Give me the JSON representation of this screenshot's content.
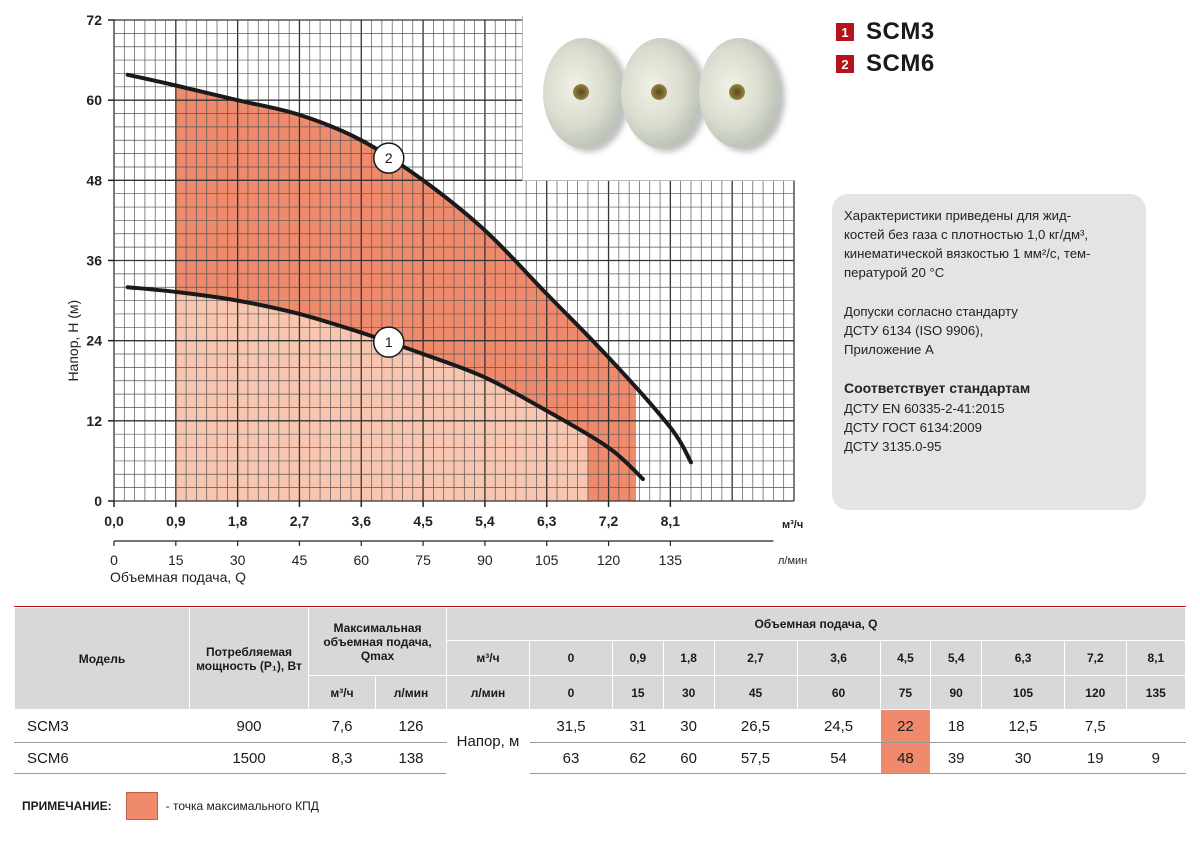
{
  "chart_data": {
    "type": "line",
    "title": "",
    "ylabel": "Напор, H (м)",
    "xlabel": "Объемная подача, Q",
    "ylim": [
      0,
      72
    ],
    "xlim": [
      0,
      9.9
    ],
    "y_ticks": [
      "0",
      "12",
      "24",
      "36",
      "48",
      "60",
      "72"
    ],
    "x_ticks_m3h": [
      "0,0",
      "0,9",
      "1,8",
      "2,7",
      "3,6",
      "4,5",
      "5,4",
      "6,3",
      "7,2",
      "8,1"
    ],
    "x_unit_m3h": "м³/ч",
    "x_ticks_lmin": [
      "0",
      "15",
      "30",
      "45",
      "60",
      "75",
      "90",
      "105",
      "120",
      "135"
    ],
    "x_unit_lmin": "л/мин",
    "series": [
      {
        "name": "1",
        "model": "SCM3",
        "color": "#1a1a1a",
        "fill": "#f8c6b0",
        "points": [
          [
            0.2,
            32
          ],
          [
            0.9,
            31.3
          ],
          [
            1.8,
            30
          ],
          [
            2.7,
            28
          ],
          [
            3.6,
            25.2
          ],
          [
            4.5,
            22
          ],
          [
            5.4,
            18.5
          ],
          [
            6.3,
            13.5
          ],
          [
            7.2,
            8
          ],
          [
            7.7,
            3.3
          ]
        ],
        "work_range": [
          0.9,
          6.9
        ],
        "label_at": 4.0
      },
      {
        "name": "2",
        "model": "SCM6",
        "color": "#1a1a1a",
        "fill": "#ef8b6c",
        "points": [
          [
            0.2,
            63.8
          ],
          [
            0.9,
            62.2
          ],
          [
            1.8,
            60
          ],
          [
            2.7,
            57.8
          ],
          [
            3.6,
            54
          ],
          [
            4.5,
            48
          ],
          [
            5.4,
            40.5
          ],
          [
            6.3,
            31
          ],
          [
            7.2,
            21.5
          ],
          [
            8.1,
            11
          ],
          [
            8.4,
            5.8
          ]
        ],
        "work_range": [
          0.9,
          7.6
        ],
        "label_at": 4.0
      }
    ]
  },
  "legend": [
    {
      "num": "1",
      "label": "SCM3"
    },
    {
      "num": "2",
      "label": "SCM6"
    }
  ],
  "info": {
    "p1": "Характеристики приведены для жид-",
    "p2": "костей без газа с плотностью 1,0 кг/дм³,",
    "p3": "кинематической вязкостью 1 мм²/с, тем-",
    "p4": "пературой 20 °C",
    "p5": "Допуски согласно стандарту",
    "p6": "ДСТУ 6134 (ISO 9906),",
    "p7": "Приложение А",
    "p8": "Соответствует стандартам",
    "p9": "ДСТУ EN 60335-2-41:2015",
    "p10": "ДСТУ ГОСТ 6134:2009",
    "p11": "ДСТУ 3135.0-95"
  },
  "table": {
    "h_model": "Модель",
    "h_power": "Потребляемая мощность (P₁), Вт",
    "h_qmax": "Максимальная объемная подача, Qmax",
    "h_flow": "Объемная подача, Q",
    "u_m3h": "м³/ч",
    "u_lmin": "л/мин",
    "flow_m3h": [
      "0",
      "0,9",
      "1,8",
      "2,7",
      "3,6",
      "4,5",
      "5,4",
      "6,3",
      "7,2",
      "8,1"
    ],
    "flow_lmin": [
      "0",
      "15",
      "30",
      "45",
      "60",
      "75",
      "90",
      "105",
      "120",
      "135"
    ],
    "head_label": "Напор, м",
    "rows": [
      {
        "model": "SCM3",
        "power": "900",
        "qmax_m3h": "7,6",
        "qmax_lmin": "126",
        "heads": [
          "31,5",
          "31",
          "30",
          "26,5",
          "24,5",
          "22",
          "18",
          "12,5",
          "7,5",
          ""
        ]
      },
      {
        "model": "SCM6",
        "power": "1500",
        "qmax_m3h": "8,3",
        "qmax_lmin": "138",
        "heads": [
          "63",
          "62",
          "60",
          "57,5",
          "54",
          "48",
          "39",
          "30",
          "19",
          "9"
        ]
      }
    ],
    "highlight_col": 5
  },
  "note": {
    "label": "ПРИМЕЧАНИЕ:",
    "text": "- точка максимального КПД",
    "color": "#ef8b6c"
  }
}
